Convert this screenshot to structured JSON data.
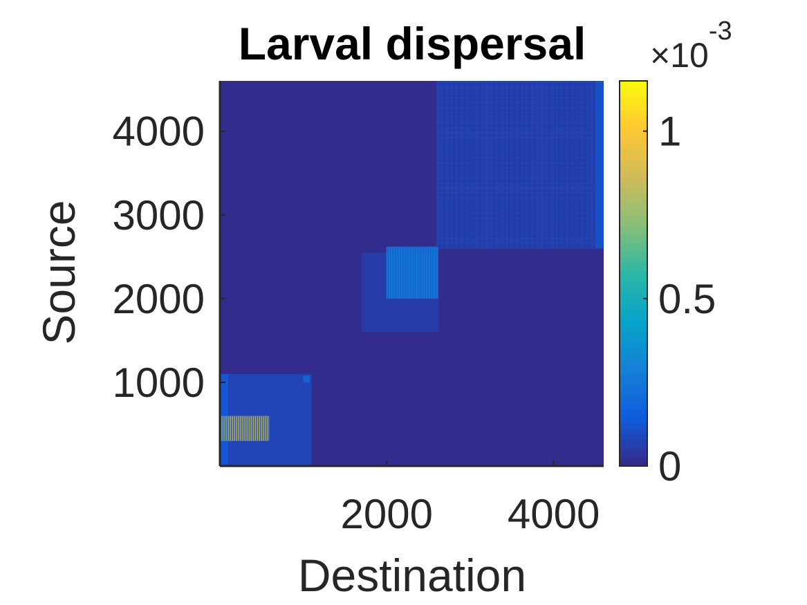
{
  "chart_data": {
    "type": "heatmap",
    "title": "Larval dispersal",
    "xlabel": "Destination",
    "ylabel": "Source",
    "xlim": [
      1,
      4600
    ],
    "ylim": [
      1,
      4600
    ],
    "x_ticks": [
      2000,
      4000
    ],
    "x_tick_labels": [
      "2000",
      "4000"
    ],
    "y_ticks": [
      1000,
      2000,
      3000,
      4000
    ],
    "y_tick_labels": [
      "1000",
      "2000",
      "3000",
      "4000"
    ],
    "colorbar": {
      "range": [
        0,
        0.00115
      ],
      "ticks": [
        0,
        0.0005,
        0.001
      ],
      "tick_labels": [
        "0",
        "0.5",
        "1"
      ],
      "multiplier_base": "×10",
      "multiplier_exp": "-3",
      "colormap": "parula",
      "colormap_stops": [
        "#352a87",
        "#0f5cdd",
        "#1481d6",
        "#06a4ca",
        "#2eb7a4",
        "#87bf77",
        "#d1bb59",
        "#fec832",
        "#f9fb0e"
      ]
    },
    "background_value": 1e-05,
    "blocks": [
      {
        "x": [
          1,
          600
        ],
        "y": [
          300,
          600
        ],
        "value": 0.00095,
        "note": "brightest yellow-green patch"
      },
      {
        "x": [
          1,
          1100
        ],
        "y": [
          1,
          1100
        ],
        "value": 9e-05
      },
      {
        "x": [
          1,
          100
        ],
        "y": [
          1,
          1100
        ],
        "value": 0.00014
      },
      {
        "x": [
          1000,
          1080
        ],
        "y": [
          1000,
          1080
        ],
        "value": 0.0002
      },
      {
        "x": [
          1700,
          2620
        ],
        "y": [
          1600,
          2550
        ],
        "value": 6e-05
      },
      {
        "x": [
          2000,
          2620
        ],
        "y": [
          2000,
          2620
        ],
        "value": 0.00022,
        "note": "bright blue patch"
      },
      {
        "x": [
          2600,
          4600
        ],
        "y": [
          2600,
          4600
        ],
        "value": 6e-05
      },
      {
        "x": [
          4500,
          4600
        ],
        "y": [
          2600,
          4600
        ],
        "value": 0.00012
      }
    ]
  }
}
